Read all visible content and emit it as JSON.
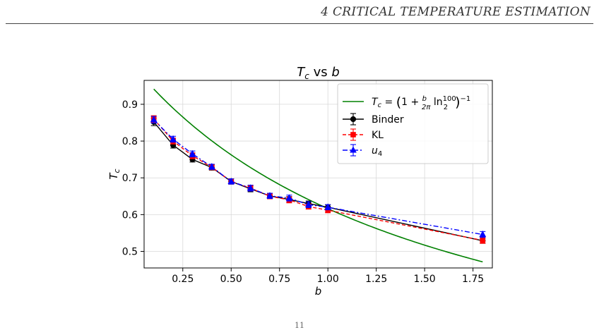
{
  "page": {
    "section_header": "4   CRITICAL TEMPERATURE ESTIMATION",
    "page_number": "11"
  },
  "chart_data": {
    "type": "line",
    "title": "T_c vs b",
    "xlabel": "b",
    "ylabel": "T_c",
    "xlim": [
      0.05,
      1.85
    ],
    "ylim": [
      0.455,
      0.965
    ],
    "xticks": [
      0.25,
      0.5,
      0.75,
      1.0,
      1.25,
      1.5,
      1.75
    ],
    "xtick_labels": [
      "0.25",
      "0.50",
      "0.75",
      "1.00",
      "1.25",
      "1.50",
      "1.75"
    ],
    "yticks": [
      0.5,
      0.6,
      0.7,
      0.8,
      0.9
    ],
    "ytick_labels": [
      "0.5",
      "0.6",
      "0.7",
      "0.8",
      "0.9"
    ],
    "grid": true,
    "legend_position": "top-right",
    "curve": {
      "name": "T_c = (1 + b/2π ln(100/2))^-1",
      "color": "#008000",
      "x_range": [
        0.1,
        1.8
      ]
    },
    "series": [
      {
        "name": "Binder",
        "color": "#000000",
        "marker": "circle",
        "linestyle": "solid",
        "x": [
          0.1,
          0.2,
          0.3,
          0.4,
          0.5,
          0.6,
          0.7,
          0.8,
          0.9,
          1.0,
          1.8
        ],
        "y": [
          0.852,
          0.789,
          0.75,
          0.728,
          0.69,
          0.67,
          0.651,
          0.641,
          0.63,
          0.62,
          0.529
        ],
        "err": [
          0.01,
          0.008,
          0.007,
          0.007,
          0.007,
          0.008,
          0.007,
          0.008,
          0.007,
          0.007,
          0.007
        ]
      },
      {
        "name": "KL",
        "color": "#ff0000",
        "marker": "square",
        "linestyle": "dashed",
        "x": [
          0.1,
          0.2,
          0.3,
          0.4,
          0.5,
          0.6,
          0.7,
          0.8,
          0.9,
          1.0,
          1.8
        ],
        "y": [
          0.86,
          0.8,
          0.76,
          0.729,
          0.69,
          0.672,
          0.65,
          0.64,
          0.622,
          0.612,
          0.53
        ],
        "err": [
          0.009,
          0.008,
          0.008,
          0.007,
          0.007,
          0.008,
          0.007,
          0.008,
          0.007,
          0.007,
          0.008
        ]
      },
      {
        "name": "u_4",
        "color": "#0000ff",
        "marker": "triangle",
        "linestyle": "dashdot",
        "x": [
          0.1,
          0.2,
          0.3,
          0.4,
          0.5,
          0.6,
          0.7,
          0.8,
          0.9,
          1.0,
          1.8
        ],
        "y": [
          0.858,
          0.805,
          0.765,
          0.73,
          0.69,
          0.672,
          0.651,
          0.645,
          0.627,
          0.62,
          0.546
        ],
        "err": [
          0.009,
          0.008,
          0.008,
          0.007,
          0.007,
          0.008,
          0.007,
          0.008,
          0.008,
          0.007,
          0.008
        ]
      }
    ]
  }
}
